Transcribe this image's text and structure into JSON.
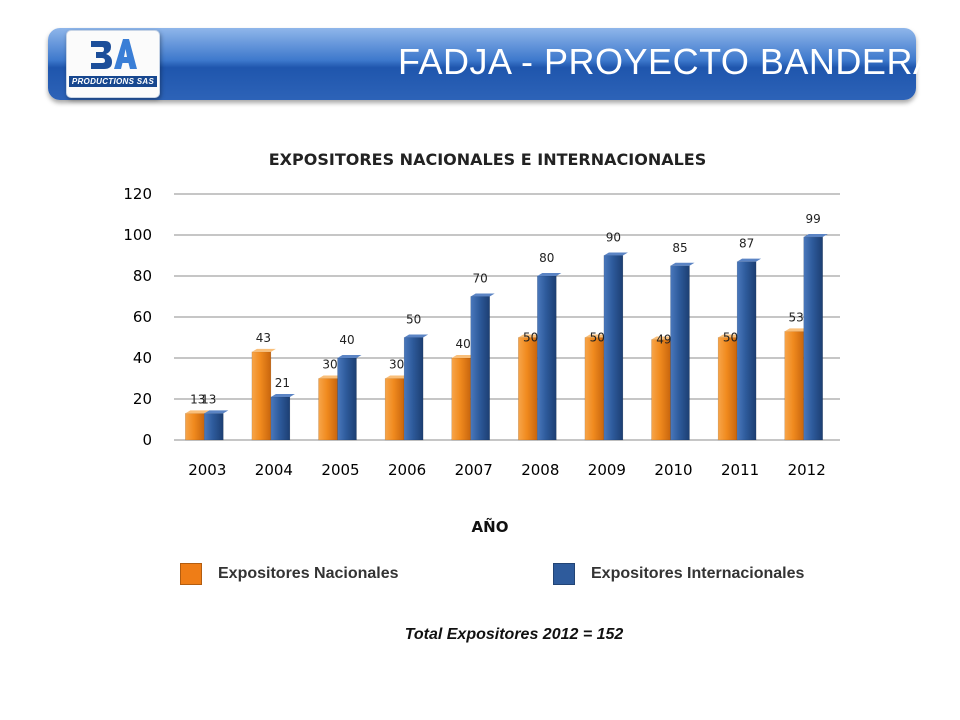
{
  "header": {
    "title": "FADJA - PROYECTO BANDERA"
  },
  "logo": {
    "glyph": "3A",
    "subtitle": "PRODUCTIONS SAS"
  },
  "colors": {
    "nacionales": "#ef8a1e",
    "internacionales": "#2e5b9c",
    "banner": "#2d63b8"
  },
  "chart_data": {
    "type": "bar",
    "title": "EXPOSITORES NACIONALES E INTERNACIONALES",
    "xlabel": "AÑO",
    "ylabel": "",
    "categories": [
      "2003",
      "2004",
      "2005",
      "2006",
      "2007",
      "2008",
      "2009",
      "2010",
      "2011",
      "2012"
    ],
    "series": [
      {
        "name": "Expositores Nacionales",
        "values": [
          13,
          43,
          30,
          30,
          40,
          50,
          50,
          49,
          50,
          53
        ]
      },
      {
        "name": "Expositores Internacionales",
        "values": [
          13,
          21,
          40,
          50,
          70,
          80,
          90,
          85,
          87,
          99
        ]
      }
    ],
    "ylim": [
      0,
      120
    ],
    "yticks": [
      0,
      20,
      40,
      60,
      80,
      100,
      120
    ],
    "grid": true,
    "legend": "bottom"
  },
  "legend": {
    "items": [
      {
        "label": "Expositores Nacionales",
        "color": "#ef8a1e"
      },
      {
        "label": "Expositores Internacionales",
        "color": "#2e5b9c"
      }
    ]
  },
  "footer": {
    "total": "Total Expositores 2012 = 152"
  }
}
